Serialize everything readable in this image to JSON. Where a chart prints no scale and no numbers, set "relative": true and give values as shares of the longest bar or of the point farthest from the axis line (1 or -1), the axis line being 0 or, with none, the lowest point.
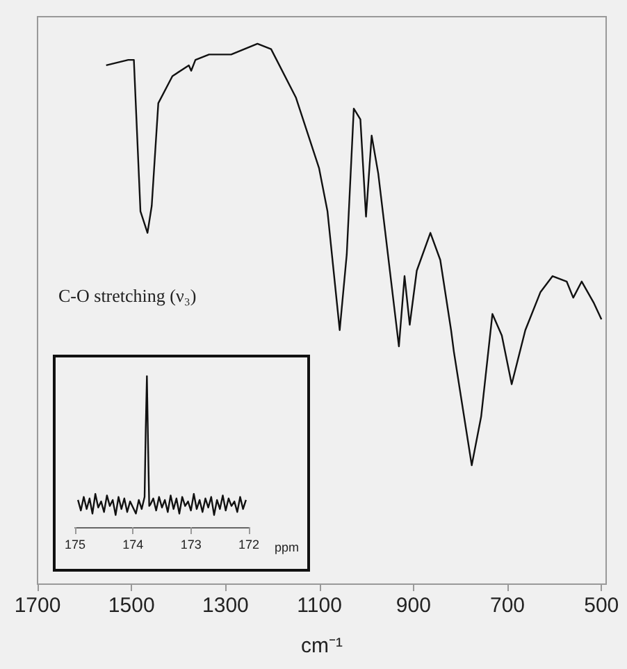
{
  "chart_data": [
    {
      "type": "line",
      "relative": true,
      "xlabel": "cm⁻¹",
      "xlim": [
        1700,
        490
      ],
      "xticks": [
        1700,
        1500,
        1300,
        1100,
        900,
        700,
        500
      ],
      "grid": false,
      "marker": "none",
      "line_style": "solid",
      "annotations": [
        "C-O stretching (ν₃)"
      ],
      "series": [
        {
          "color": "#111111",
          "x": [
            1554,
            1507,
            1495,
            1481,
            1466,
            1457,
            1443,
            1413,
            1378,
            1373,
            1364,
            1335,
            1288,
            1232,
            1203,
            1150,
            1101,
            1083,
            1057,
            1042,
            1027,
            1013,
            1001,
            989,
            975,
            931,
            919,
            908,
            893,
            864,
            843,
            820,
            814,
            776,
            756,
            732,
            712,
            691,
            662,
            630,
            604,
            574,
            560,
            542,
            516,
            500
          ],
          "values": [
            0.96,
            0.97,
            0.97,
            0.69,
            0.65,
            0.7,
            0.89,
            0.94,
            0.96,
            0.95,
            0.97,
            0.98,
            0.98,
            1.0,
            0.99,
            0.9,
            0.77,
            0.69,
            0.47,
            0.61,
            0.88,
            0.86,
            0.68,
            0.83,
            0.76,
            0.44,
            0.57,
            0.48,
            0.58,
            0.65,
            0.6,
            0.47,
            0.43,
            0.22,
            0.31,
            0.5,
            0.46,
            0.37,
            0.47,
            0.54,
            0.57,
            0.56,
            0.53,
            0.56,
            0.52,
            0.49
          ]
        }
      ]
    },
    {
      "type": "line",
      "relative": true,
      "xlabel": "ppm",
      "xlim": [
        175,
        172
      ],
      "xticks": [
        175,
        174,
        173,
        172
      ],
      "grid": false,
      "marker": "none",
      "line_style": "solid",
      "series": [
        {
          "color": "#111111",
          "x": [
            174.95,
            174.9,
            174.85,
            174.8,
            174.75,
            174.7,
            174.65,
            174.6,
            174.55,
            174.5,
            174.45,
            174.4,
            174.35,
            174.3,
            174.25,
            174.2,
            174.15,
            174.1,
            174.05,
            174.0,
            173.95,
            173.9,
            173.85,
            173.8,
            173.78,
            173.76,
            173.74,
            173.72,
            173.7,
            173.65,
            173.6,
            173.55,
            173.5,
            173.45,
            173.4,
            173.35,
            173.3,
            173.25,
            173.2,
            173.15,
            173.1,
            173.05,
            173.0,
            172.95,
            172.9,
            172.85,
            172.8,
            172.75,
            172.7,
            172.65,
            172.6,
            172.55,
            172.5,
            172.45,
            172.4,
            172.35,
            172.3,
            172.25,
            172.2,
            172.15,
            172.1,
            172.05
          ],
          "values": [
            0.18,
            0.11,
            0.2,
            0.12,
            0.19,
            0.09,
            0.22,
            0.13,
            0.17,
            0.1,
            0.21,
            0.14,
            0.18,
            0.08,
            0.2,
            0.12,
            0.19,
            0.1,
            0.17,
            0.13,
            0.09,
            0.18,
            0.12,
            0.2,
            0.65,
            1.0,
            0.55,
            0.14,
            0.15,
            0.19,
            0.11,
            0.2,
            0.13,
            0.18,
            0.1,
            0.21,
            0.12,
            0.19,
            0.09,
            0.2,
            0.14,
            0.17,
            0.11,
            0.22,
            0.12,
            0.18,
            0.1,
            0.19,
            0.13,
            0.2,
            0.08,
            0.18,
            0.12,
            0.21,
            0.11,
            0.19,
            0.14,
            0.17,
            0.1,
            0.2,
            0.12,
            0.18
          ]
        }
      ]
    }
  ]
}
